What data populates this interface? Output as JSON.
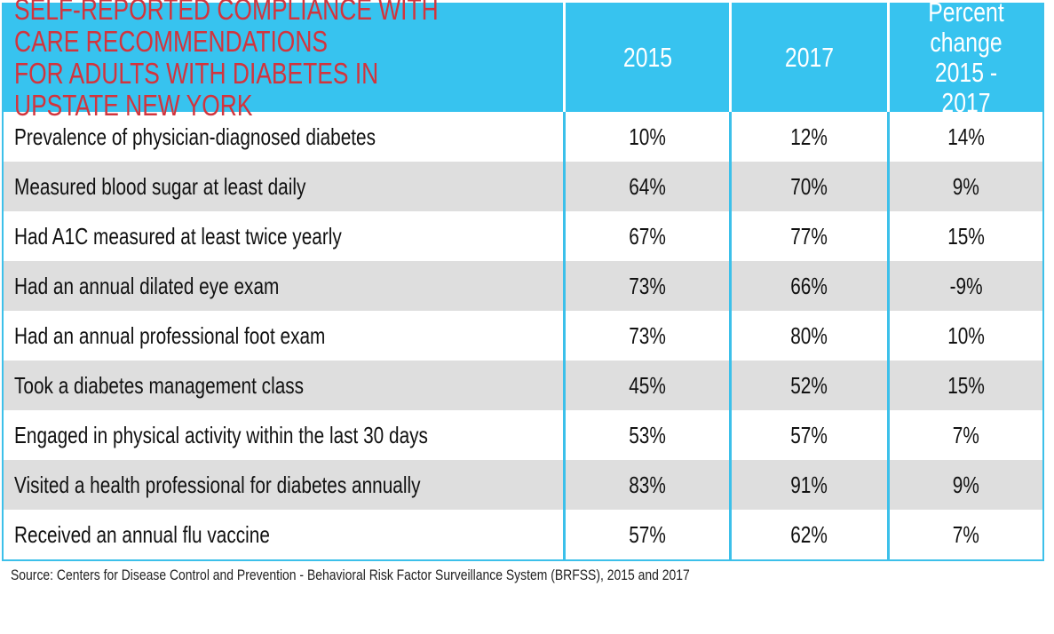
{
  "chart_data": {
    "type": "table",
    "title": "SELF-REPORTED COMPLIANCE WITH CARE RECOMMENDATIONS FOR ADULTS WITH DIABETES IN UPSTATE NEW YORK",
    "columns": [
      "2015",
      "2017",
      "Percent change 2015 - 2017"
    ],
    "rows": [
      {
        "label": "Prevalence of physician-diagnosed diabetes",
        "values": [
          "10%",
          "12%",
          "14%"
        ]
      },
      {
        "label": "Measured blood sugar at least daily",
        "values": [
          "64%",
          "70%",
          "9%"
        ]
      },
      {
        "label": "Had A1C measured at least twice yearly",
        "values": [
          "67%",
          "77%",
          "15%"
        ]
      },
      {
        "label": "Had an annual dilated eye exam",
        "values": [
          "73%",
          "66%",
          "-9%"
        ]
      },
      {
        "label": "Had an annual professional foot exam",
        "values": [
          "73%",
          "80%",
          "10%"
        ]
      },
      {
        "label": "Took a diabetes management class",
        "values": [
          "45%",
          "52%",
          "15%"
        ]
      },
      {
        "label": "Engaged in physical activity within the last 30 days",
        "values": [
          "53%",
          "57%",
          "7%"
        ]
      },
      {
        "label": "Visited a health professional for diabetes annually",
        "values": [
          "83%",
          "91%",
          "9%"
        ]
      },
      {
        "label": "Received an annual flu vaccine",
        "values": [
          "57%",
          "62%",
          "7%"
        ]
      }
    ],
    "source": "Source: Centers for Disease Control and Prevention - Behavioral Risk Factor Surveillance System (BRFSS), 2015 and 2017",
    "colors": {
      "header_bg": "#37c3ef",
      "title": "#d2343d",
      "alt_row": "#dedede",
      "border": "#3cc0ea"
    }
  }
}
